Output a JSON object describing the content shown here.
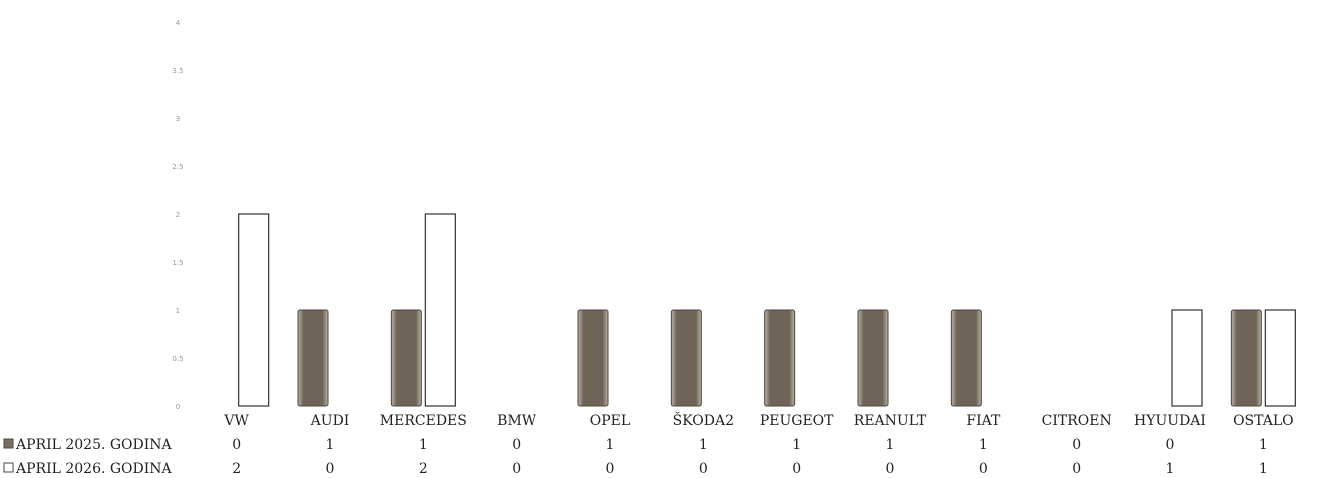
{
  "chart_data": {
    "type": "bar",
    "title": "",
    "xlabel": "",
    "ylabel": "",
    "ylim": [
      0,
      4
    ],
    "y_ticks": [
      "0",
      "0.5",
      "1",
      "1.5",
      "2",
      "2.5",
      "3",
      "3.5",
      "4"
    ],
    "categories": [
      "VW",
      "AUDI",
      "MERCEDES",
      "BMW",
      "OPEL",
      "ŠKODA2",
      "PEUGEOT",
      "REANULT",
      "FIAT",
      "CITROEN",
      "HYUUDAI",
      "OSTALO"
    ],
    "series": [
      {
        "name": "APRIL 2025. GODINA",
        "values": [
          0,
          1,
          1,
          0,
          1,
          1,
          1,
          1,
          1,
          0,
          0,
          1
        ],
        "color": "#7a6e62",
        "legend_marker": "filled"
      },
      {
        "name": "APRIL 2026. GODINA",
        "values": [
          2,
          0,
          2,
          0,
          0,
          0,
          0,
          0,
          0,
          0,
          1,
          1
        ],
        "color": "#ffffff",
        "legend_marker": "outline"
      }
    ],
    "legend": "data-table-left",
    "grid": false,
    "data_table": true
  }
}
